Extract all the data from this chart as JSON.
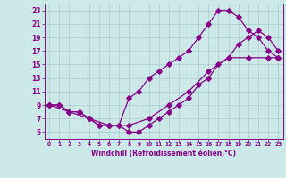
{
  "xlabel": "Windchill (Refroidissement éolien,°C)",
  "bg_color": "#cce8e8",
  "line_color": "#880088",
  "grid_color": "#aacccc",
  "xlim": [
    -0.5,
    23.5
  ],
  "ylim": [
    4,
    24
  ],
  "xticks": [
    0,
    1,
    2,
    3,
    4,
    5,
    6,
    7,
    8,
    9,
    10,
    11,
    12,
    13,
    14,
    15,
    16,
    17,
    18,
    19,
    20,
    21,
    22,
    23
  ],
  "yticks": [
    5,
    7,
    9,
    11,
    13,
    15,
    17,
    19,
    21,
    23
  ],
  "curve1_x": [
    0,
    1,
    2,
    3,
    4,
    5,
    6,
    7,
    8,
    9,
    10,
    11,
    12,
    13,
    14,
    15,
    16,
    17,
    18,
    19,
    20,
    21,
    22,
    23
  ],
  "curve1_y": [
    9,
    9,
    8,
    8,
    7,
    6,
    6,
    6,
    5,
    5,
    6,
    7,
    8,
    9,
    10,
    12,
    13,
    15,
    16,
    18,
    19,
    20,
    19,
    17
  ],
  "curve2_x": [
    0,
    1,
    2,
    3,
    4,
    5,
    6,
    7,
    8,
    9,
    10,
    11,
    12,
    13,
    14,
    15,
    16,
    17,
    18,
    19,
    20,
    21,
    22,
    23
  ],
  "curve2_y": [
    9,
    9,
    8,
    8,
    7,
    6,
    6,
    6,
    10,
    11,
    13,
    14,
    15,
    16,
    17,
    19,
    21,
    23,
    23,
    22,
    20,
    19,
    17,
    16
  ],
  "curve3_x": [
    0,
    2,
    4,
    6,
    8,
    10,
    12,
    14,
    16,
    18,
    20,
    22,
    23
  ],
  "curve3_y": [
    9,
    8,
    7,
    6,
    6,
    7,
    9,
    11,
    14,
    16,
    16,
    16,
    16
  ]
}
